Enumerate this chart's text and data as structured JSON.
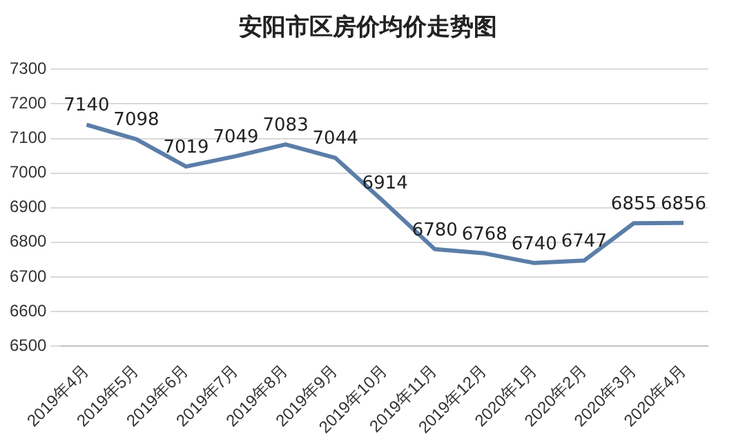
{
  "chart_data": {
    "type": "line",
    "title": "安阳市区房价均价走势图",
    "categories": [
      "2019年4月",
      "2019年5月",
      "2019年6月",
      "2019年7月",
      "2019年8月",
      "2019年9月",
      "2019年10月",
      "2019年11月",
      "2019年12月",
      "2020年1月",
      "2020年2月",
      "2020年3月",
      "2020年4月"
    ],
    "series": [
      {
        "color": "#5b7ea8",
        "values": [
          7140,
          7098,
          7019,
          7049,
          7083,
          7044,
          6914,
          6780,
          6768,
          6740,
          6747,
          6855,
          6856
        ]
      }
    ],
    "ylim": [
      6500,
      7300
    ],
    "yticks": [
      6500,
      6600,
      6700,
      6800,
      6900,
      7000,
      7100,
      7200,
      7300
    ],
    "grid": "y",
    "legend": false,
    "marker": "none",
    "line_style": "solid",
    "data_labels": true
  }
}
